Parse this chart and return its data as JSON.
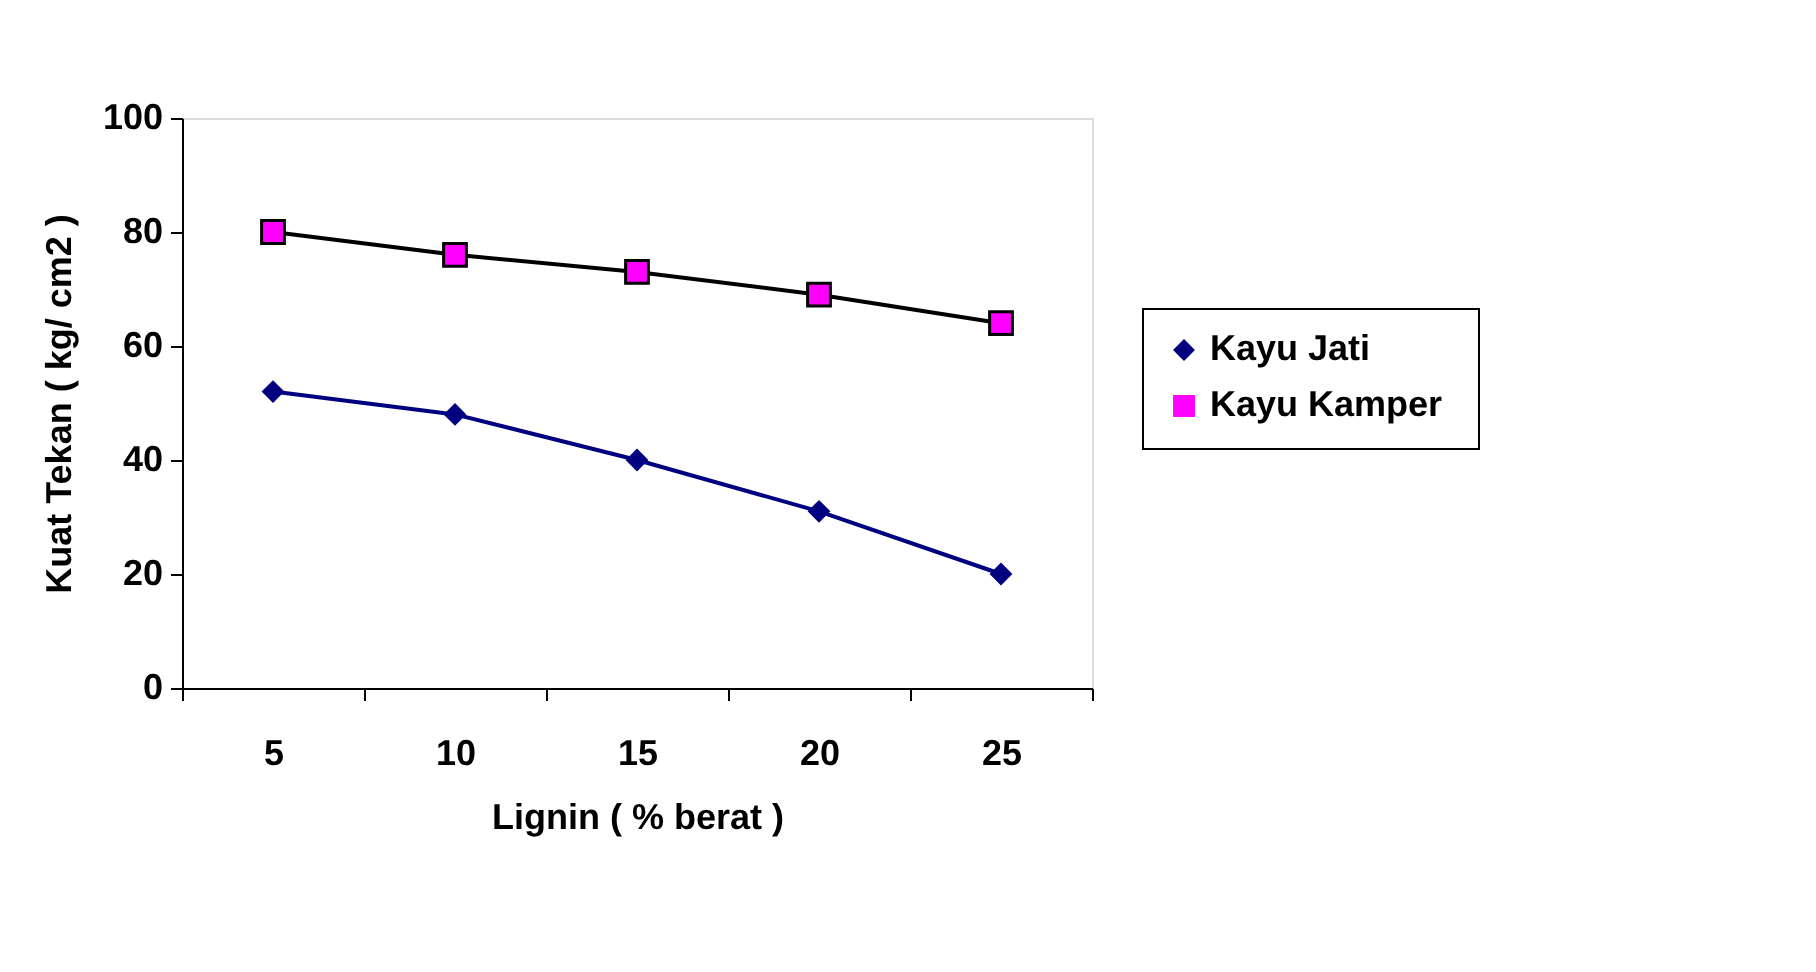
{
  "chart_data": {
    "type": "line",
    "xlabel": "Lignin  ( % berat )",
    "ylabel": "Kuat  Tekan  ( kg/ cm2 )",
    "categories": [
      "5",
      "10",
      "15",
      "20",
      "25"
    ],
    "series": [
      {
        "name": "Kayu  Jati",
        "color": "#000080",
        "marker": "diamond",
        "values": [
          52,
          48,
          40,
          31,
          20
        ]
      },
      {
        "name": "Kayu  Kamper",
        "color": "#ff00ff",
        "marker": "square",
        "values": [
          80,
          76,
          73,
          69,
          64
        ]
      }
    ],
    "ylim": [
      0,
      100
    ],
    "yticks": [
      0,
      20,
      40,
      60,
      80,
      100
    ],
    "grid": false,
    "legend": "right"
  }
}
